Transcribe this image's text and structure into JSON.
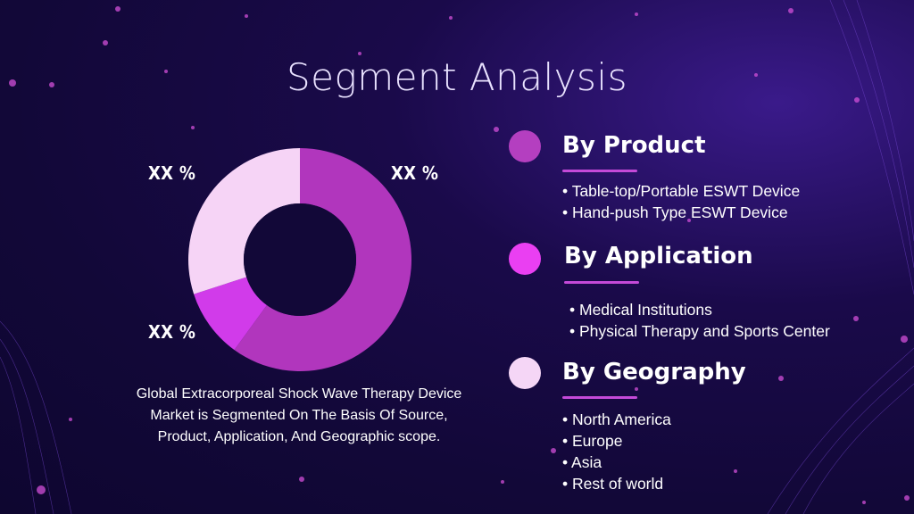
{
  "title": "Segment Analysis",
  "chart_data": {
    "type": "donut",
    "slices": [
      {
        "label": "XX %",
        "value": 60,
        "color": "#b136bd"
      },
      {
        "label": "XX %",
        "value": 10,
        "color": "#d13bea"
      },
      {
        "label": "XX %",
        "value": 30,
        "color": "#f6d4f6"
      }
    ],
    "hole_color": "#120838"
  },
  "labels": {
    "top_left": "XX %",
    "top_right": "XX %",
    "bottom_left": "XX %"
  },
  "caption": "Global Extracorporeal Shock Wave Therapy Device Market is Segmented On The Basis Of Source, Product, Application, And Geographic scope.",
  "segments": [
    {
      "title": "By Product",
      "dot_color": "#b43fc0",
      "items": [
        "Table-top/Portable ESWT Device",
        "Hand-push Type ESWT Device"
      ]
    },
    {
      "title": "By Application",
      "dot_color": "#ea3ff2",
      "items": [
        "Medical Institutions",
        "Physical Therapy and Sports Center"
      ]
    },
    {
      "title": "By Geography",
      "dot_color": "#f5d6f6",
      "items": [
        "North America",
        "Europe",
        "Asia",
        "Rest of world"
      ]
    }
  ]
}
